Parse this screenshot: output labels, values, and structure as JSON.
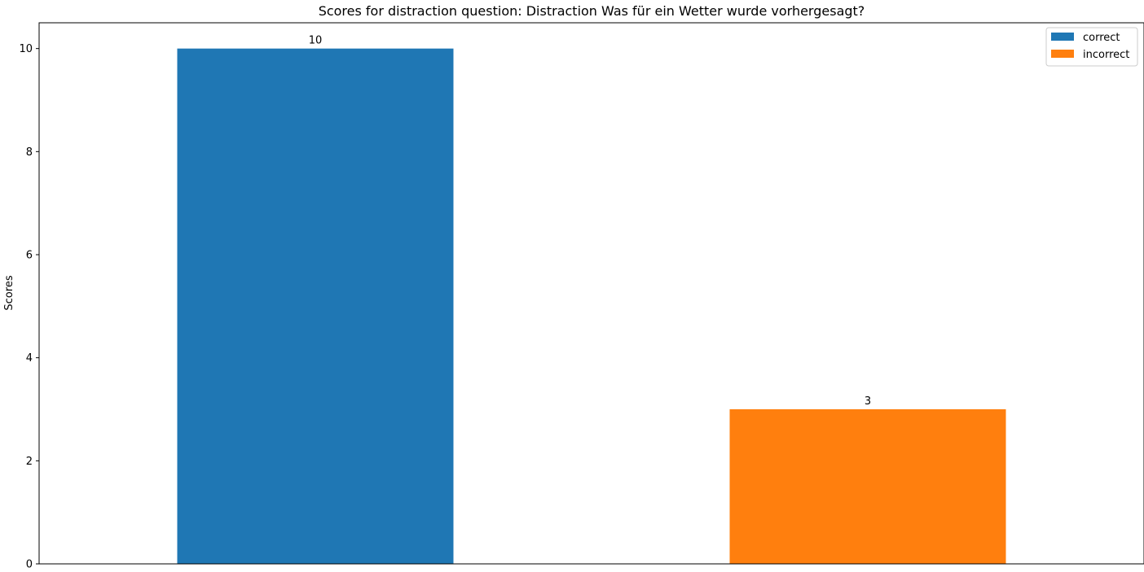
{
  "chart_data": {
    "type": "bar",
    "title": "Scores for distraction question: Distraction Was für ein Wetter wurde vorhergesagt?",
    "xlabel": "",
    "ylabel": "Scores",
    "categories": [
      "correct",
      "incorrect"
    ],
    "series": [
      {
        "name": "correct",
        "color": "#1f77b4",
        "values": [
          10,
          null
        ]
      },
      {
        "name": "incorrect",
        "color": "#ff7f0e",
        "values": [
          null,
          3
        ]
      }
    ],
    "data_labels": [
      "10",
      "3"
    ],
    "ylim": [
      0,
      10.5
    ],
    "yticks": [
      0,
      2,
      4,
      6,
      8,
      10
    ],
    "grid": false,
    "legend_position": "top-right"
  }
}
